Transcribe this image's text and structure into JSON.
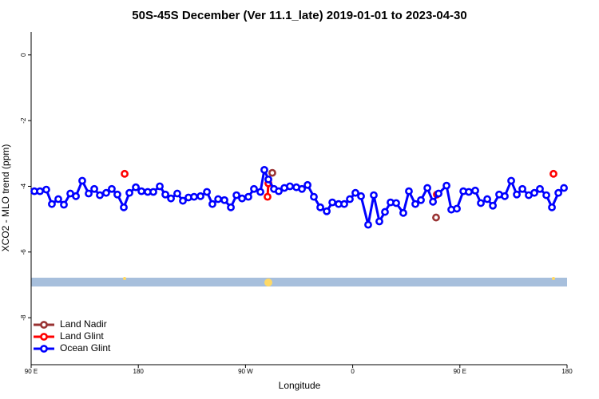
{
  "chart_data": {
    "type": "line",
    "title": "50S-45S December (Ver 11.1_late)   2019-01-01 to 2023-04-30",
    "xlabel": "Longitude",
    "ylabel": "XCO2 - MLO trend (ppm)",
    "xlim": [
      90,
      540
    ],
    "ylim": [
      -9.43,
      0.7
    ],
    "xticks": [
      {
        "value": 90,
        "label": "90 E"
      },
      180,
      {
        "value": 270,
        "label": "90 W"
      },
      {
        "value": 360,
        "label": "0"
      },
      {
        "value": 450,
        "label": "90 E"
      },
      {
        "value": 540,
        "label": "180"
      }
    ],
    "yticks": [
      0,
      -2,
      -4,
      -6,
      -8
    ],
    "legend": "bottomleft",
    "series": [
      {
        "name": "Land Nadir",
        "color": "#993333",
        "x": [
          292.5,
          null,
          430.0
        ],
        "values": [
          -3.59,
          null,
          -4.95
        ]
      },
      {
        "name": "Land Glint",
        "color": "#ff0000",
        "x": [
          168.5,
          null,
          288.5,
          289.2,
          null,
          430.7,
          null,
          528.6
        ],
        "values": [
          -3.62,
          null,
          -4.32,
          -3.91,
          null,
          -4.25,
          null,
          -3.62
        ]
      },
      {
        "name": "Ocean Glint",
        "color": "#0000ff",
        "x": [
          92.7,
          97.4,
          102.7,
          107.4,
          112.8,
          117.5,
          122.9,
          127.6,
          132.9,
          138.3,
          143.0,
          147.7,
          153.0,
          157.7,
          162.4,
          167.8,
          172.5,
          177.9,
          182.6,
          187.9,
          192.6,
          198.0,
          202.7,
          207.4,
          212.7,
          217.4,
          222.1,
          226.8,
          232.2,
          237.6,
          242.2,
          247.0,
          252.3,
          257.7,
          262.4,
          267.1,
          272.4,
          277.1,
          282.5,
          285.8,
          289.2,
          293.9,
          297.9,
          302.6,
          307.3,
          312.7,
          317.4,
          322.1,
          327.4,
          332.8,
          338.2,
          342.9,
          348.2,
          352.9,
          357.6,
          362.3,
          367.0,
          373.0,
          377.7,
          382.4,
          387.1,
          391.8,
          396.5,
          402.5,
          407.2,
          412.6,
          417.3,
          422.7,
          427.4,
          432.1,
          438.8,
          442.8,
          447.5,
          452.9,
          457.5,
          462.9,
          467.6,
          473.0,
          477.7,
          483.0,
          487.7,
          493.1,
          497.8,
          502.5,
          507.8,
          512.5,
          517.2,
          522.6,
          527.3,
          532.7,
          537.4
        ],
        "values": [
          -4.15,
          -4.15,
          -4.1,
          -4.54,
          -4.39,
          -4.56,
          -4.22,
          -4.3,
          -3.83,
          -4.22,
          -4.08,
          -4.27,
          -4.2,
          -4.08,
          -4.25,
          -4.64,
          -4.2,
          -4.03,
          -4.15,
          -4.17,
          -4.17,
          -4.0,
          -4.25,
          -4.37,
          -4.22,
          -4.44,
          -4.34,
          -4.32,
          -4.3,
          -4.17,
          -4.54,
          -4.39,
          -4.42,
          -4.64,
          -4.27,
          -4.37,
          -4.32,
          -4.08,
          -4.17,
          -3.5,
          -3.79,
          -4.08,
          -4.15,
          -4.05,
          -4.0,
          -4.03,
          -4.08,
          -3.96,
          -4.32,
          -4.64,
          -4.76,
          -4.49,
          -4.54,
          -4.54,
          -4.39,
          -4.2,
          -4.3,
          -5.17,
          -4.27,
          -5.07,
          -4.78,
          -4.49,
          -4.51,
          -4.81,
          -4.15,
          -4.54,
          -4.42,
          -4.05,
          -4.47,
          -4.22,
          -3.98,
          -4.71,
          -4.68,
          -4.15,
          -4.17,
          -4.13,
          -4.51,
          -4.39,
          -4.59,
          -4.25,
          -4.3,
          -3.83,
          -4.25,
          -4.08,
          -4.27,
          -4.2,
          -4.08,
          -4.27,
          -4.64,
          -4.2,
          -4.05
        ]
      }
    ]
  }
}
